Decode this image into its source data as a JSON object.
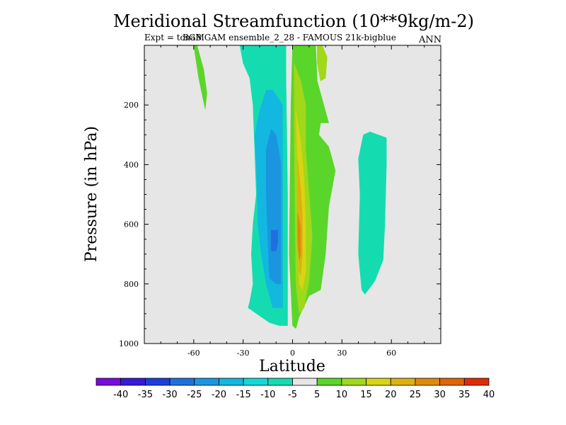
{
  "chart_data": {
    "type": "contour",
    "title": "Meridional Streamfunction (10**9kg/m-2)",
    "subtitle": "Expt = tcnaB GAM ensemble_2_28 - FAMOUS 21k-bigblue",
    "subtitle_overlap": "BGM",
    "season": "ANN",
    "xlabel": "Latitude",
    "ylabel": "Pressure (in hPa)",
    "xlim": [
      -90,
      90
    ],
    "ylim": [
      0,
      1000
    ],
    "y_inverted": true,
    "x_ticks": [
      -60,
      -30,
      0,
      30,
      60
    ],
    "y_ticks": [
      200,
      400,
      600,
      800,
      1000
    ],
    "background_color": "#e6e6e6",
    "levels": [
      -40,
      -35,
      -30,
      -25,
      -20,
      -15,
      -10,
      -5,
      5,
      10,
      15,
      20,
      25,
      30,
      35,
      40
    ],
    "colorbar_colors": [
      "#7a0ae0",
      "#3a18d8",
      "#1c3fdc",
      "#1f6fe0",
      "#1a96e0",
      "#12b8e0",
      "#14d8d8",
      "#14dcb0",
      "#e6e6e6",
      "#5ad62a",
      "#a0d81a",
      "#d8d414",
      "#e0b010",
      "#e08a0c",
      "#e06408",
      "#e02c04"
    ],
    "regions": [
      {
        "name": "southern-cell-outer",
        "value": -7,
        "color": "#14dcb0",
        "lat": [
          -32,
          -30,
          -26,
          -24,
          -22,
          -24,
          -25,
          -24,
          -26,
          -27,
          -14,
          -8,
          -3,
          -3,
          -4,
          -4
        ],
        "p": [
          0,
          60,
          110,
          200,
          500,
          600,
          700,
          800,
          860,
          880,
          930,
          940,
          940,
          500,
          100,
          0
        ]
      },
      {
        "name": "southern-cell-inner",
        "value": -12,
        "color": "#12b8e0",
        "lat": [
          -16,
          -20,
          -23,
          -22,
          -21,
          -19,
          -16,
          -12,
          -6,
          -6,
          -6,
          -6,
          -12
        ],
        "p": [
          150,
          220,
          300,
          400,
          600,
          700,
          800,
          880,
          880,
          700,
          400,
          200,
          150
        ]
      },
      {
        "name": "southern-cell-core",
        "value": -17,
        "color": "#1a96e0",
        "lat": [
          -13,
          -16,
          -16,
          -15,
          -14,
          -10,
          -7,
          -7,
          -7,
          -10
        ],
        "p": [
          280,
          350,
          500,
          650,
          780,
          800,
          800,
          600,
          400,
          300
        ]
      },
      {
        "name": "southern-cell-peak",
        "value": -22,
        "color": "#1f6fe0",
        "lat": [
          -13,
          -13,
          -10,
          -9,
          -9
        ],
        "p": [
          620,
          690,
          690,
          660,
          620
        ]
      },
      {
        "name": "northern-stratosphere-band",
        "value": 7,
        "color": "#5ad62a",
        "lat": [
          -58,
          -54,
          -52,
          -53,
          -57,
          -60
        ],
        "p": [
          0,
          80,
          160,
          215,
          110,
          0
        ]
      },
      {
        "name": "northern-hadley-outer",
        "value": 7,
        "color": "#5ad62a",
        "lat": [
          0,
          5,
          14,
          15,
          22,
          17,
          16,
          22,
          26,
          22,
          20,
          17,
          10,
          4,
          2,
          0,
          -2,
          -1
        ],
        "p": [
          0,
          0,
          0,
          120,
          260,
          260,
          300,
          340,
          420,
          540,
          700,
          820,
          840,
          910,
          950,
          940,
          700,
          200
        ]
      },
      {
        "name": "northern-hadley-inner",
        "value": 12,
        "color": "#a0d81a",
        "lat": [
          1,
          5,
          8,
          8,
          10,
          12,
          10,
          7,
          4,
          2,
          1
        ],
        "p": [
          60,
          120,
          200,
          350,
          500,
          640,
          790,
          880,
          900,
          800,
          300
        ]
      },
      {
        "name": "northern-hadley-core",
        "value": 18,
        "color": "#d8d414",
        "lat": [
          2,
          5,
          7,
          8,
          8,
          6,
          4,
          3
        ],
        "p": [
          220,
          320,
          450,
          600,
          760,
          820,
          800,
          400
        ]
      },
      {
        "name": "northern-hadley-peak",
        "value": 25,
        "color": "#e0b010",
        "lat": [
          3,
          5,
          6,
          6,
          5,
          4,
          3
        ],
        "p": [
          380,
          480,
          580,
          700,
          770,
          760,
          500
        ]
      },
      {
        "name": "northern-hadley-max",
        "value": 32,
        "color": "#e08a0c",
        "lat": [
          3,
          5,
          5,
          4,
          3
        ],
        "p": [
          560,
          610,
          700,
          720,
          660
        ]
      },
      {
        "name": "tropical-upper-cell",
        "value": 12,
        "color": "#a0d81a",
        "lat": [
          15,
          18,
          21,
          20,
          17,
          15
        ],
        "p": [
          0,
          0,
          40,
          110,
          120,
          60
        ]
      },
      {
        "name": "polar-cell-north",
        "value": -7,
        "color": "#14dcb0",
        "lat": [
          40,
          43,
          47,
          52,
          57,
          57,
          56,
          55,
          50,
          44,
          42,
          40,
          41
        ],
        "p": [
          380,
          300,
          290,
          300,
          310,
          400,
          600,
          720,
          790,
          835,
          820,
          700,
          500
        ]
      }
    ]
  }
}
